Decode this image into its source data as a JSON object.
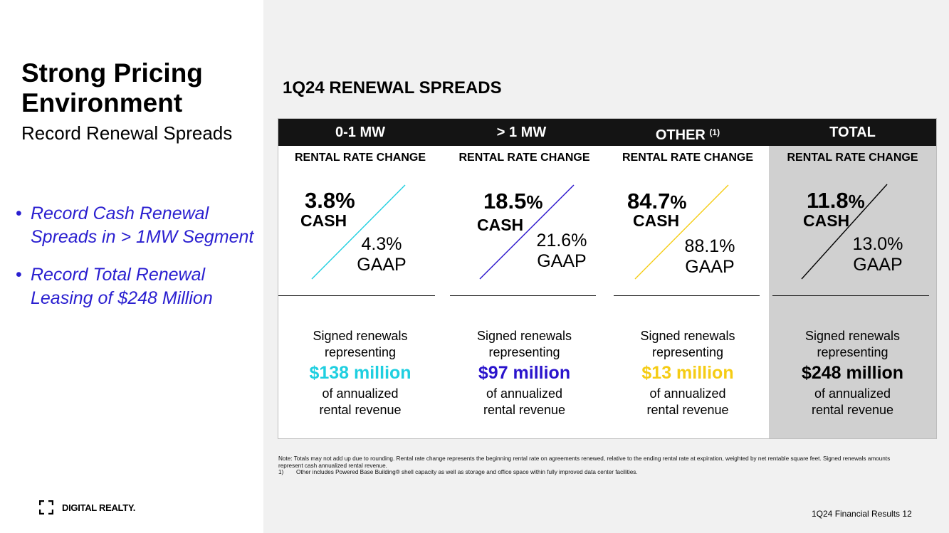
{
  "slide": {
    "title": "Strong Pricing Environment",
    "subtitle": "Record Renewal Spreads",
    "bullets": [
      "Record Cash Renewal Spreads in > 1MW Segment",
      "Record Total Renewal Leasing of $248 Million"
    ],
    "logo_text": "DIGITAL REALTY.",
    "footer": "1Q24 Financial Results 12"
  },
  "table": {
    "section_title": "1Q24 RENEWAL SPREADS",
    "columns": [
      {
        "header": "0-1 MW",
        "footnote": "",
        "rate_label": "RENTAL RATE CHANGE",
        "cash_num": "3.8",
        "cash_pct": "%",
        "cash_label": "CASH",
        "gaap_value": "4.3%",
        "gaap_label": "GAAP",
        "signed_line1": "Signed renewals",
        "signed_line2": "representing",
        "amount": "$138 million",
        "tail_line1": "of annualized",
        "tail_line2": "rental revenue",
        "accent": "#1fcfe0"
      },
      {
        "header": "> 1 MW",
        "footnote": "",
        "rate_label": "RENTAL RATE CHANGE",
        "cash_num": "18.5",
        "cash_pct": "%",
        "cash_label": "CASH",
        "gaap_value": "21.6%",
        "gaap_label": "GAAP",
        "signed_line1": "Signed renewals",
        "signed_line2": "representing",
        "amount": "$97 million",
        "tail_line1": "of annualized",
        "tail_line2": "rental revenue",
        "accent": "#2a14cc"
      },
      {
        "header": "OTHER",
        "footnote": "(1)",
        "rate_label": "RENTAL RATE CHANGE",
        "cash_num": "84.7",
        "cash_pct": "%",
        "cash_label": "CASH",
        "gaap_value": "88.1%",
        "gaap_label": "GAAP",
        "signed_line1": "Signed renewals",
        "signed_line2": "representing",
        "amount": "$13 million",
        "tail_line1": "of annualized",
        "tail_line2": "rental revenue",
        "accent": "#f5cc14"
      },
      {
        "header": "TOTAL",
        "footnote": "",
        "rate_label": "RENTAL RATE CHANGE",
        "cash_num": "11.8",
        "cash_pct": "%",
        "cash_label": "CASH",
        "gaap_value": "13.0%",
        "gaap_label": "GAAP",
        "signed_line1": "Signed renewals",
        "signed_line2": "representing",
        "amount": "$248 million",
        "tail_line1": "of annualized",
        "tail_line2": "rental revenue",
        "accent": "#000000"
      }
    ]
  },
  "notes": {
    "note_text": "Note:  Totals may not add up due to rounding. Rental rate change represents the beginning rental rate on agreements renewed, relative to the ending rental rate at expiration, weighted by net rentable square feet.  Signed renewals amounts represent cash annualized rental revenue.",
    "footnote_num": "1)",
    "footnote_text": "Other includes Powered Base Building® shell capacity as well as storage and office space within fully improved data center facilities."
  }
}
